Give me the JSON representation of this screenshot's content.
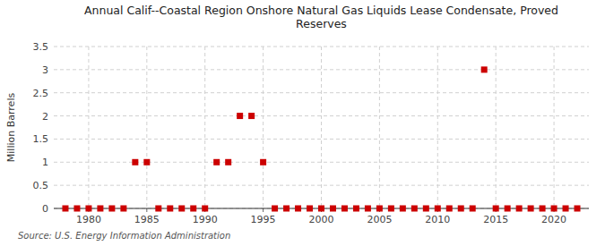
{
  "chart_data": {
    "type": "scatter",
    "title": "Annual Calif--Coastal Region Onshore Natural Gas Liquids Lease Condensate, Proved\nReserves",
    "y_label": "Million Barrels",
    "annotations": [
      "Source: U.S. Energy Information Administration"
    ],
    "x": [
      1978,
      1979,
      1980,
      1981,
      1982,
      1983,
      1984,
      1985,
      1986,
      1987,
      1988,
      1989,
      1990,
      1991,
      1992,
      1993,
      1994,
      1995,
      1996,
      1997,
      1998,
      1999,
      2000,
      2001,
      2002,
      2003,
      2004,
      2005,
      2006,
      2007,
      2008,
      2009,
      2010,
      2011,
      2012,
      2013,
      2014,
      2015,
      2016,
      2017,
      2018,
      2019,
      2020,
      2021,
      2022
    ],
    "values": [
      0,
      0,
      0,
      0,
      0,
      0,
      1,
      1,
      0,
      0,
      0,
      0,
      0,
      1,
      1,
      2,
      2,
      1,
      0,
      0,
      0,
      0,
      0,
      0,
      0,
      0,
      0,
      0,
      0,
      0,
      0,
      0,
      0,
      0,
      0,
      0,
      3,
      0,
      0,
      0,
      0,
      0,
      0,
      0,
      0
    ],
    "color": "#cc0000",
    "marker": "square",
    "xlim": [
      1977,
      2023
    ],
    "ylim": [
      0,
      3.5
    ],
    "xticks": [
      1980,
      1985,
      1990,
      1995,
      2000,
      2005,
      2010,
      2015,
      2020
    ],
    "yticks": [
      0,
      0.5,
      1,
      1.5,
      2,
      2.5,
      3,
      3.5
    ],
    "grid": true
  }
}
